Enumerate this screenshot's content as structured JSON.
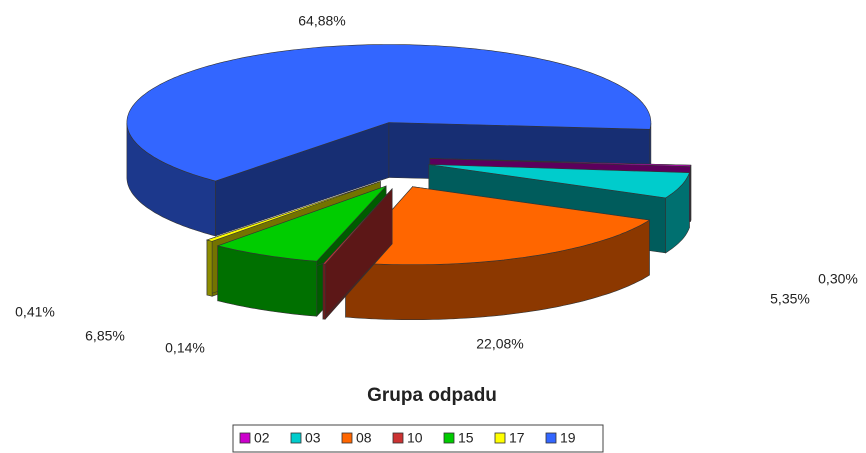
{
  "chart_data": {
    "type": "pie3d",
    "title": "Grupa odpadu",
    "categories": [
      "02",
      "03",
      "08",
      "10",
      "15",
      "17",
      "19"
    ],
    "values": [
      0.3,
      5.35,
      22.08,
      0.14,
      6.85,
      0.41,
      64.88
    ],
    "value_labels": [
      "0,30%",
      "5,35%",
      "22,08%",
      "0,14%",
      "6,85%",
      "0,41%",
      "64,88%"
    ],
    "colors": [
      "#cc00cc",
      "#00cccc",
      "#ff6600",
      "#cc3333",
      "#00cc00",
      "#ffff00",
      "#3366ff"
    ],
    "legend": "bottom"
  }
}
